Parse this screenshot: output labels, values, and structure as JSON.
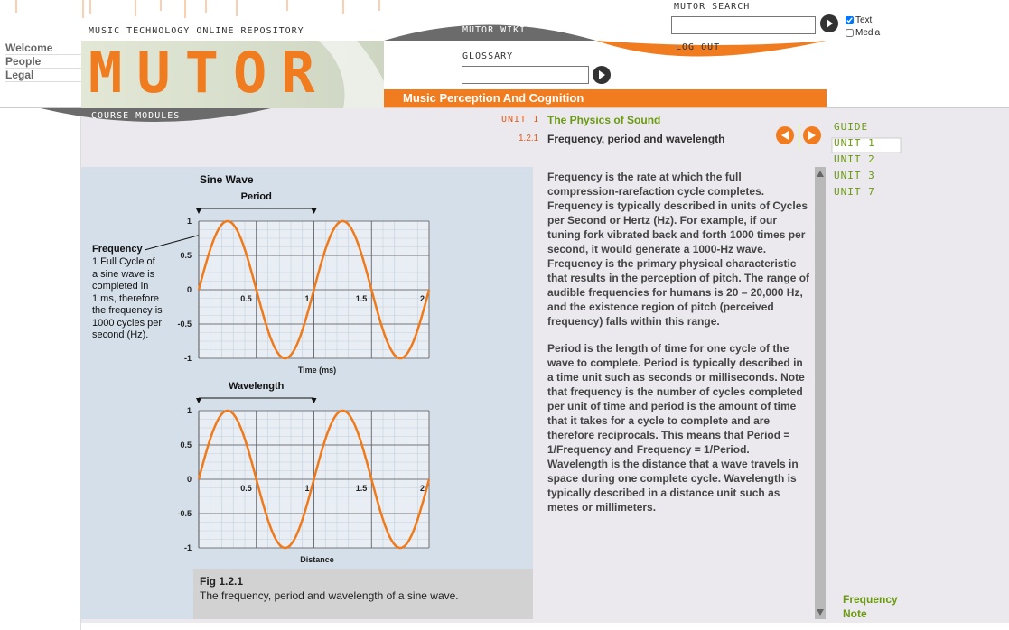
{
  "nav": [
    "Welcome",
    "People",
    "Legal"
  ],
  "header": {
    "tagline": "MUSIC TECHNOLOGY ONLINE REPOSITORY",
    "logo": "mutor",
    "wiki": "MUTOR WIKI",
    "search_label": "MUTOR SEARCH",
    "checkboxes": [
      "Text",
      "Media"
    ],
    "logout": "LOG OUT",
    "glossary": "GLOSSARY",
    "course_title": "Music Perception And Cognition",
    "course_modules": "COURSE MODULES"
  },
  "breadcrumb": {
    "unit_label": "UNIT 1",
    "unit_title": "The Physics of Sound",
    "section_number": "1.2.1",
    "section_title": "Frequency, period and wavelength"
  },
  "side_nav": [
    "GUIDE",
    "UNIT 1",
    "UNIT 2",
    "UNIT 3",
    "UNIT 7"
  ],
  "side_note": [
    "Frequency",
    "Note"
  ],
  "figure": {
    "title": "Sine Wave",
    "annotation": {
      "title": "Frequency",
      "lines": [
        "1 Full Cycle of",
        "a sine wave is",
        "completed in",
        "1 ms, therefore",
        "the frequency is",
        "1000 cycles per",
        "second (Hz)."
      ]
    },
    "charts": [
      {
        "bracket_label": "Period",
        "x_label": "Time (ms)",
        "xlim": [
          0,
          2
        ],
        "ylim": [
          -1,
          1
        ],
        "xticks": [
          0.5,
          1,
          1.5,
          2
        ],
        "yticks": [
          1,
          0.5,
          0,
          -0.5,
          -1
        ]
      },
      {
        "bracket_label": "Wavelength",
        "x_label": "Distance",
        "xlim": [
          0,
          2
        ],
        "ylim": [
          -1,
          1
        ],
        "xticks": [
          0.5,
          1,
          1.5,
          2
        ],
        "yticks": [
          1,
          0.5,
          0,
          -0.5,
          -1
        ]
      }
    ],
    "caption_title": "Fig 1.2.1",
    "caption": "The frequency, period and wavelength of a sine wave."
  },
  "body": [
    "Frequency is the rate at which the full compression-rarefaction cycle completes. Frequency is typically described in units of Cycles per Second or Hertz (Hz). For example, if our tuning fork vibrated back and forth 1000 times per second, it would generate a 1000-Hz wave. Frequency is the primary physical characteristic that results in the perception of pitch. The range of audible frequencies for humans is 20 – 20,000 Hz, and the existence region of pitch (perceived frequency) falls within this range.",
    "Period is the length of time for one cycle of the wave to complete. Period is typically described in a time unit such as seconds or milliseconds. Note that frequency is the number of cycles completed per unit of time and period is the amount of time that it takes for a cycle to complete and are therefore reciprocals. This means that Period = 1/Frequency and Frequency = 1/Period. Wavelength is the distance that a wave travels in space during one complete cycle. Wavelength is typically described in a distance unit such as metes or millimeters."
  ]
}
